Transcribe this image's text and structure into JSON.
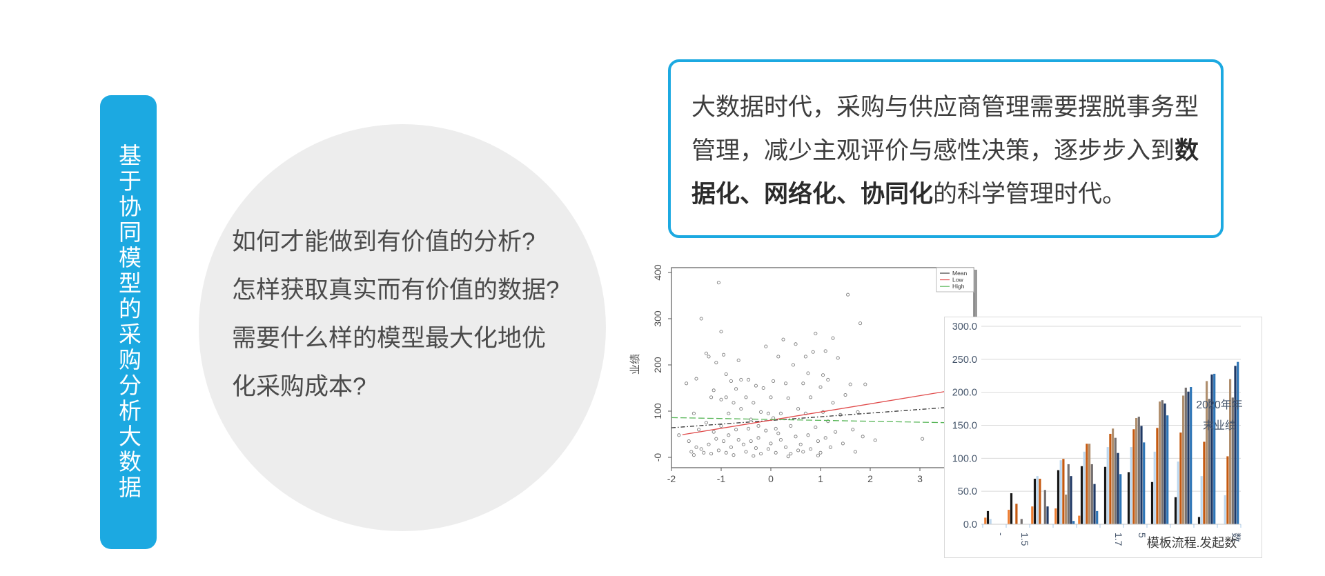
{
  "slide": {
    "banner": {
      "text": "基于协同模型的采购分析大数据",
      "bg": "#1CA9E1",
      "text_color": "#FFFFFF"
    },
    "question": {
      "bg": "#EDEDED",
      "lines": [
        "如何才能做到有价值的分析?",
        "怎样获取真实而有价值的数据?",
        "需要什么样的模型最大化地优",
        "化采购成本?"
      ]
    },
    "callout": {
      "border_color": "#1CA9E1",
      "line1": "大数据时代，采购与供应商管理需要摆脱事务型",
      "line2_normal": "管理，减少主观评价与感性决策，逐步步入到",
      "line2_bold": "数",
      "line3_bold": "据化、网络化、协同化",
      "line3_normal": "的科学管理时代。"
    }
  },
  "chart_data": [
    {
      "type": "scatter",
      "ylabel": "业绩",
      "xlim": [
        -2.07,
        4.08
      ],
      "ylim": [
        -22,
        410
      ],
      "x_ticks": [
        -2,
        -1,
        0,
        1,
        2,
        3
      ],
      "y_ticks": [
        {
          "v": 400,
          "label": "400"
        },
        {
          "v": 300,
          "label": "300"
        },
        {
          "v": 200,
          "label": "200"
        },
        {
          "v": 100,
          "label": "100"
        },
        {
          "v": 0,
          "label": "-0"
        }
      ],
      "legend": {
        "position": "top-right",
        "entries": [
          {
            "label": "Mean",
            "color": "#2E2E2E"
          },
          {
            "label": "Low",
            "color": "#E04B4B"
          },
          {
            "label": "High",
            "color": "#56B556"
          }
        ]
      },
      "trend_lines": [
        {
          "name": "Mean",
          "color": "#2E2E2E",
          "dash": "6 3 1.5 3",
          "pts": [
            [
              -2,
              64
            ],
            [
              4.05,
              112
            ]
          ]
        },
        {
          "name": "Low",
          "color": "#E04B4B",
          "dash": "",
          "pts": [
            [
              -1.78,
              49
            ],
            [
              4.05,
              152
            ]
          ]
        },
        {
          "name": "High",
          "color": "#56B556",
          "dash": "9 4",
          "pts": [
            [
              -2,
              86
            ],
            [
              4.05,
              74
            ]
          ]
        }
      ],
      "points": [
        [
          -1.85,
          48
        ],
        [
          -1.7,
          160
        ],
        [
          -1.65,
          35
        ],
        [
          -1.6,
          12
        ],
        [
          -1.55,
          95
        ],
        [
          -1.55,
          5
        ],
        [
          -1.5,
          170
        ],
        [
          -1.5,
          22
        ],
        [
          -1.45,
          60
        ],
        [
          -1.4,
          300
        ],
        [
          -1.4,
          18
        ],
        [
          -1.35,
          10
        ],
        [
          -1.3,
          225
        ],
        [
          -1.3,
          75
        ],
        [
          -1.25,
          218
        ],
        [
          -1.25,
          28
        ],
        [
          -1.2,
          130
        ],
        [
          -1.2,
          8
        ],
        [
          -1.15,
          145
        ],
        [
          -1.15,
          55
        ],
        [
          -1.1,
          205
        ],
        [
          -1.1,
          40
        ],
        [
          -1.05,
          378
        ],
        [
          -1.05,
          15
        ],
        [
          -1.0,
          272
        ],
        [
          -1.0,
          125
        ],
        [
          -1.0,
          68
        ],
        [
          -0.95,
          222
        ],
        [
          -0.95,
          35
        ],
        [
          -0.9,
          180
        ],
        [
          -0.9,
          130
        ],
        [
          -0.9,
          10
        ],
        [
          -0.85,
          95
        ],
        [
          -0.85,
          48
        ],
        [
          -0.8,
          165
        ],
        [
          -0.8,
          22
        ],
        [
          -0.75,
          118
        ],
        [
          -0.75,
          5
        ],
        [
          -0.7,
          148
        ],
        [
          -0.7,
          60
        ],
        [
          -0.65,
          210
        ],
        [
          -0.65,
          38
        ],
        [
          -0.6,
          168
        ],
        [
          -0.6,
          105
        ],
        [
          -0.55,
          28
        ],
        [
          -0.5,
          130
        ],
        [
          -0.5,
          12
        ],
        [
          -0.45,
          168
        ],
        [
          -0.45,
          62
        ],
        [
          -0.4,
          82
        ],
        [
          -0.4,
          35
        ],
        [
          -0.35,
          118
        ],
        [
          -0.35,
          3
        ],
        [
          -0.3,
          155
        ],
        [
          -0.3,
          20
        ],
        [
          -0.25,
          68
        ],
        [
          -0.25,
          42
        ],
        [
          -0.2,
          98
        ],
        [
          -0.2,
          8
        ],
        [
          -0.15,
          150
        ],
        [
          -0.1,
          240
        ],
        [
          -0.1,
          58
        ],
        [
          -0.05,
          95
        ],
        [
          -0.05,
          18
        ],
        [
          0,
          130
        ],
        [
          0,
          30
        ],
        [
          0.05,
          165
        ],
        [
          0.05,
          85
        ],
        [
          0.1,
          62
        ],
        [
          0.1,
          10
        ],
        [
          0.15,
          218
        ],
        [
          0.15,
          52
        ],
        [
          0.2,
          95
        ],
        [
          0.2,
          38
        ],
        [
          0.25,
          255
        ],
        [
          0.3,
          160
        ],
        [
          0.3,
          22
        ],
        [
          0.35,
          128
        ],
        [
          0.35,
          2
        ],
        [
          0.4,
          68
        ],
        [
          0.4,
          8
        ],
        [
          0.45,
          200
        ],
        [
          0.5,
          245
        ],
        [
          0.5,
          45
        ],
        [
          0.55,
          105
        ],
        [
          0.55,
          15
        ],
        [
          0.6,
          28
        ],
        [
          0.65,
          160
        ],
        [
          0.65,
          12
        ],
        [
          0.7,
          218
        ],
        [
          0.7,
          95
        ],
        [
          0.75,
          182
        ],
        [
          0.75,
          48
        ],
        [
          0.8,
          130
        ],
        [
          0.8,
          18
        ],
        [
          0.85,
          228
        ],
        [
          0.9,
          268
        ],
        [
          0.9,
          65
        ],
        [
          0.95,
          35
        ],
        [
          0.95,
          4
        ],
        [
          1.0,
          152
        ],
        [
          1.0,
          10
        ],
        [
          1.05,
          178
        ],
        [
          1.05,
          98
        ],
        [
          1.1,
          230
        ],
        [
          1.1,
          42
        ],
        [
          1.15,
          168
        ],
        [
          1.15,
          78
        ],
        [
          1.2,
          22
        ],
        [
          1.25,
          258
        ],
        [
          1.25,
          118
        ],
        [
          1.3,
          55
        ],
        [
          1.35,
          215
        ],
        [
          1.4,
          92
        ],
        [
          1.45,
          30
        ],
        [
          1.5,
          135
        ],
        [
          1.55,
          352
        ],
        [
          1.6,
          158
        ],
        [
          1.65,
          60
        ],
        [
          1.7,
          12
        ],
        [
          1.75,
          98
        ],
        [
          1.8,
          290
        ],
        [
          1.85,
          45
        ],
        [
          1.9,
          158
        ],
        [
          2.1,
          37
        ],
        [
          3.05,
          40
        ]
      ]
    },
    {
      "type": "bar",
      "ylim": [
        0,
        300
      ],
      "y_ticks": [
        {
          "v": 300,
          "label": "300.0"
        },
        {
          "v": 250,
          "label": "250.0"
        },
        {
          "v": 200,
          "label": "200.0"
        },
        {
          "v": 150,
          "label": "150.0"
        },
        {
          "v": 100,
          "label": "100.0"
        },
        {
          "v": 50,
          "label": "50.0"
        },
        {
          "v": 0,
          "label": "0.0"
        }
      ],
      "categories": [
        "-",
        "1.5",
        "",
        "",
        "",
        "1.7",
        "5",
        "",
        "",
        "",
        "数"
      ],
      "x_axis_title": "模板流程.发起数",
      "overlay_label_lines": [
        "2020年年",
        "末业绩"
      ],
      "label_color": "#44546A",
      "grid_color": "#D9D9D9",
      "series": [
        {
          "color": "#ED7D31",
          "values": [
            10,
            22,
            27,
            24,
            13,
            0,
            0,
            0,
            0,
            0,
            0
          ]
        },
        {
          "color": "#161616",
          "values": [
            20,
            47,
            69,
            82,
            88,
            87,
            79,
            64,
            41,
            11,
            0
          ]
        },
        {
          "color": "#BDD7EE",
          "values": [
            8,
            0,
            73,
            97,
            110,
            117,
            117,
            110,
            95,
            73,
            44
          ]
        },
        {
          "color": "#C55A11",
          "values": [
            0,
            31,
            69,
            99,
            122,
            137,
            144,
            146,
            139,
            125,
            103
          ]
        },
        {
          "color": "#B08F6E",
          "values": [
            0,
            0,
            0,
            45,
            122,
            145,
            161,
            186,
            195,
            217,
            220
          ]
        },
        {
          "color": "#757070",
          "values": [
            0,
            8,
            52,
            91,
            91,
            131,
            163,
            188,
            207,
            190,
            192
          ]
        },
        {
          "color": "#1F3864",
          "values": [
            0,
            0,
            27,
            73,
            61,
            108,
            149,
            183,
            201,
            227,
            240
          ]
        },
        {
          "color": "#2E75B6",
          "values": [
            0,
            0,
            0,
            5,
            20,
            76,
            124,
            165,
            208,
            228,
            246
          ]
        }
      ]
    }
  ]
}
